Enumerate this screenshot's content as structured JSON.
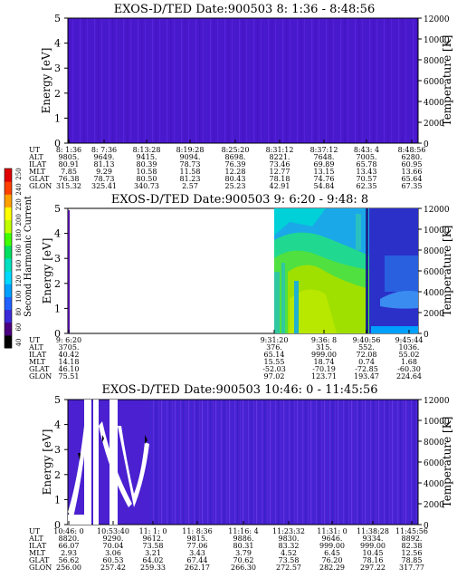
{
  "colorbar": {
    "label": "Second Harmonic Current",
    "ticks": [
      "40",
      "60",
      "80",
      "100",
      "120",
      "140",
      "160",
      "180",
      "200",
      "220",
      "240",
      "250"
    ],
    "colors": [
      "#000000",
      "#4a0080",
      "#3a2ad8",
      "#2060ff",
      "#00a0ff",
      "#00d8ff",
      "#00e0c0",
      "#00e060",
      "#40ff00",
      "#c0ff00",
      "#ffff00",
      "#ffa000",
      "#ff4000",
      "#e00000"
    ]
  },
  "rows": [
    "UT",
    "ALT",
    "ILAT",
    "MLT",
    "GLAT",
    "GLON"
  ],
  "chart_data": [
    {
      "type": "heatmap",
      "title": "EXOS-D/TED  Date:900503  8: 1:36 - 8:48:56",
      "ylabel": "Energy [eV]",
      "ylabel_right": "Temperature [K]",
      "ylim": [
        0,
        5
      ],
      "ylim_right": [
        0,
        12000
      ],
      "yticks": [
        "0",
        "1",
        "2",
        "3",
        "4",
        "5"
      ],
      "yticks_right": [
        "0",
        "2000",
        "4000",
        "6000",
        "8000",
        "10000",
        "12000"
      ],
      "columns": [
        [
          "8: 1:36",
          "9805.",
          "80.91",
          "7.85",
          "76.38",
          "315.32"
        ],
        [
          "8: 7:36",
          "9649.",
          "81.13",
          "9.29",
          "78.73",
          "325.41"
        ],
        [
          "8:13:28",
          "9415.",
          "80.39",
          "10.58",
          "80.50",
          "340.73"
        ],
        [
          "8:19:28",
          "9094.",
          "78.73",
          "11.58",
          "81.23",
          "2.57"
        ],
        [
          "8:25:20",
          "8698.",
          "76.39",
          "12.28",
          "80.43",
          "25.23"
        ],
        [
          "8:31:12",
          "8221.",
          "73.46",
          "12.77",
          "78.18",
          "42.91"
        ],
        [
          "8:37:12",
          "7648.",
          "69.89",
          "13.15",
          "74.76",
          "54.84"
        ],
        [
          "8:43: 4",
          "7005.",
          "65.78",
          "13.43",
          "70.57",
          "62.35"
        ],
        [
          "8:48:56",
          "6280.",
          "60.95",
          "13.66",
          "65.64",
          "67.35"
        ]
      ]
    },
    {
      "type": "heatmap",
      "title": "EXOS-D/TED  Date:900503  9: 6:20 - 9:48: 8",
      "ylabel": "Energy [eV]",
      "ylabel_right": "Temperature [K]",
      "ylim": [
        0,
        5
      ],
      "ylim_right": [
        0,
        12000
      ],
      "yticks": [
        "0",
        "1",
        "2",
        "3",
        "4",
        "5"
      ],
      "yticks_right": [
        "0",
        "2000",
        "4000",
        "6000",
        "8000",
        "10000",
        "12000"
      ],
      "columns": [
        [
          "9: 6:20",
          "3705.",
          "40.42",
          "14.18",
          "46.10",
          "75.51"
        ],
        [
          "9:31:20",
          "376.",
          "65.14",
          "15.55",
          "-52.03",
          "97.02"
        ],
        [
          "9:36: 8",
          "315.",
          "999.00",
          "18.74",
          "-70.19",
          "123.71"
        ],
        [
          "9:40:56",
          "552.",
          "72.08",
          "0.74",
          "-72.85",
          "193.47"
        ],
        [
          "9:45:44",
          "1036.",
          "55.02",
          "1.68",
          "-60.30",
          "224.64"
        ]
      ]
    },
    {
      "type": "heatmap",
      "title": "EXOS-D/TED  Date:900503  10:46: 0 - 11:45:56",
      "ylabel": "Energy [eV]",
      "ylabel_right": "Temperature [K]",
      "ylim": [
        0,
        5
      ],
      "ylim_right": [
        0,
        12000
      ],
      "yticks": [
        "0",
        "1",
        "2",
        "3",
        "4",
        "5"
      ],
      "yticks_right": [
        "0",
        "2000",
        "4000",
        "6000",
        "8000",
        "10000",
        "12000"
      ],
      "columns": [
        [
          "10:46: 0",
          "8820.",
          "66.07",
          "2.93",
          "56.62",
          "256.00"
        ],
        [
          "10:53:40",
          "9290.",
          "70.04",
          "3.06",
          "60.53",
          "257.42"
        ],
        [
          "11: 1: 0",
          "9612.",
          "73.58",
          "3.21",
          "64.02",
          "259.33"
        ],
        [
          "11: 8:36",
          "9815.",
          "77.06",
          "3.43",
          "67.44",
          "262.17"
        ],
        [
          "11:16: 4",
          "9886.",
          "80.31",
          "3.79",
          "70.62",
          "266.30"
        ],
        [
          "11:23:32",
          "9830.",
          "83.32",
          "4.52",
          "73.58",
          "272.57"
        ],
        [
          "11:31: 0",
          "9646.",
          "999.00",
          "6.45",
          "76.20",
          "282.29"
        ],
        [
          "11:38:28",
          "9334.",
          "999.00",
          "10.45",
          "78.16",
          "297.22"
        ],
        [
          "11:45:56",
          "8892.",
          "82.38",
          "12.56",
          "78.85",
          "317.77"
        ]
      ]
    }
  ]
}
